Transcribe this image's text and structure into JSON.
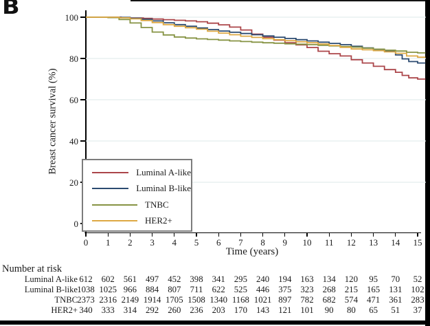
{
  "panel_label": "B",
  "colors": {
    "luminal_a_like": "#ab4549",
    "luminal_b_like": "#2b4a70",
    "tnbc": "#869343",
    "her2_plus": "#dda843",
    "gridline": "#e4edee",
    "legend_border": "#7c7c7c",
    "axis": "#000000",
    "frame": "#000000"
  },
  "chart_data": {
    "type": "line",
    "subtype": "kaplan-meier-step",
    "title": "",
    "xlabel": "Time (years)",
    "ylabel": "Breast cancer survival (%)",
    "xlim": [
      0,
      15
    ],
    "ylim": [
      0,
      100
    ],
    "xticks": [
      0,
      1,
      2,
      3,
      4,
      5,
      6,
      7,
      8,
      9,
      10,
      11,
      12,
      13,
      14,
      15
    ],
    "yticks": [
      0,
      20,
      40,
      60,
      80,
      100
    ],
    "grid": "horizontal",
    "legend_position": "lower-left-box",
    "series": [
      {
        "name": "Luminal A-like",
        "color": "#ab4549",
        "points": [
          [
            0,
            100
          ],
          [
            1,
            100
          ],
          [
            1.6,
            99.8
          ],
          [
            2,
            99.6
          ],
          [
            2.6,
            99.4
          ],
          [
            3,
            99.1
          ],
          [
            3.5,
            98.8
          ],
          [
            4,
            98.5
          ],
          [
            4.5,
            98.2
          ],
          [
            5,
            97.8
          ],
          [
            5.5,
            97.1
          ],
          [
            6,
            96.3
          ],
          [
            6.5,
            95.2
          ],
          [
            7,
            93.8
          ],
          [
            7.5,
            91.8
          ],
          [
            8,
            90.3
          ],
          [
            8.5,
            88.9
          ],
          [
            9,
            87.6
          ],
          [
            9.5,
            86.6
          ],
          [
            10,
            85.3
          ],
          [
            10.5,
            83.5
          ],
          [
            11,
            82.3
          ],
          [
            11.5,
            81.2
          ],
          [
            12,
            79.4
          ],
          [
            12.5,
            77.8
          ],
          [
            13,
            76.2
          ],
          [
            13.5,
            74.6
          ],
          [
            14,
            73.3
          ],
          [
            14.3,
            71.8
          ],
          [
            14.6,
            70.6
          ],
          [
            15,
            70
          ],
          [
            15.35,
            70
          ]
        ]
      },
      {
        "name": "Luminal B-like",
        "color": "#2b4a70",
        "points": [
          [
            0,
            100
          ],
          [
            1,
            100
          ],
          [
            1.5,
            99.9
          ],
          [
            2,
            99.5
          ],
          [
            2.5,
            99.0
          ],
          [
            3,
            98.2
          ],
          [
            3.5,
            97.3
          ],
          [
            4,
            96.4
          ],
          [
            4.5,
            95.6
          ],
          [
            5,
            94.8
          ],
          [
            5.5,
            94.0
          ],
          [
            6,
            93.3
          ],
          [
            6.5,
            92.7
          ],
          [
            7,
            92.1
          ],
          [
            7.5,
            91.5
          ],
          [
            8,
            90.9
          ],
          [
            8.5,
            90.3
          ],
          [
            9,
            89.7
          ],
          [
            9.5,
            89.1
          ],
          [
            10,
            88.5
          ],
          [
            10.5,
            87.9
          ],
          [
            11,
            87.3
          ],
          [
            11.5,
            86.7
          ],
          [
            12,
            85.9
          ],
          [
            12.5,
            85.1
          ],
          [
            13,
            84.4
          ],
          [
            13.5,
            83.6
          ],
          [
            14,
            81.7
          ],
          [
            14.3,
            79.8
          ],
          [
            14.6,
            78.5
          ],
          [
            15,
            77.8
          ],
          [
            15.35,
            77.8
          ]
        ]
      },
      {
        "name": "TNBC",
        "color": "#869343",
        "points": [
          [
            0,
            100
          ],
          [
            1,
            99.8
          ],
          [
            1.5,
            98.9
          ],
          [
            2,
            97.2
          ],
          [
            2.5,
            95.0
          ],
          [
            3,
            92.8
          ],
          [
            3.5,
            91.4
          ],
          [
            4,
            90.4
          ],
          [
            4.5,
            89.9
          ],
          [
            5,
            89.5
          ],
          [
            5.5,
            89.2
          ],
          [
            6,
            88.9
          ],
          [
            6.5,
            88.5
          ],
          [
            7,
            88.2
          ],
          [
            7.5,
            87.9
          ],
          [
            8,
            87.6
          ],
          [
            8.5,
            87.4
          ],
          [
            9,
            87.1
          ],
          [
            9.5,
            86.9
          ],
          [
            10,
            86.7
          ],
          [
            10.5,
            86.4
          ],
          [
            11,
            86.1
          ],
          [
            11.5,
            85.8
          ],
          [
            12,
            85.5
          ],
          [
            12.5,
            85.0
          ],
          [
            13,
            84.5
          ],
          [
            13.5,
            84.0
          ],
          [
            14,
            83.6
          ],
          [
            14.5,
            83.0
          ],
          [
            15,
            82.7
          ],
          [
            15.35,
            82.7
          ]
        ]
      },
      {
        "name": "HER2+",
        "color": "#dda843",
        "points": [
          [
            0,
            100
          ],
          [
            1,
            100
          ],
          [
            1.5,
            99.7
          ],
          [
            2,
            99.2
          ],
          [
            2.5,
            98.4
          ],
          [
            3,
            97.4
          ],
          [
            3.5,
            96.4
          ],
          [
            4,
            95.6
          ],
          [
            4.5,
            94.9
          ],
          [
            5,
            94.2
          ],
          [
            5.5,
            93.2
          ],
          [
            6,
            92.3
          ],
          [
            6.5,
            91.5
          ],
          [
            7,
            90.8
          ],
          [
            7.5,
            90.2
          ],
          [
            8,
            89.6
          ],
          [
            8.5,
            89.1
          ],
          [
            9,
            88.6
          ],
          [
            9.5,
            88.1
          ],
          [
            10,
            87.6
          ],
          [
            10.5,
            87.0
          ],
          [
            11,
            86.3
          ],
          [
            11.5,
            85.4
          ],
          [
            12,
            84.6
          ],
          [
            12.5,
            84.2
          ],
          [
            13,
            83.8
          ],
          [
            13.5,
            83.2
          ],
          [
            14,
            82.5
          ],
          [
            14.5,
            81.2
          ],
          [
            15,
            80.6
          ],
          [
            15.35,
            80.6
          ]
        ]
      }
    ]
  },
  "risk_table": {
    "title": "Number at risk",
    "timepoints": [
      0,
      1,
      2,
      3,
      4,
      5,
      6,
      7,
      8,
      9,
      10,
      11,
      12,
      13,
      14,
      15
    ],
    "rows": [
      {
        "label": "Luminal A-like",
        "values": [
          612,
          602,
          561,
          497,
          452,
          398,
          341,
          295,
          240,
          194,
          163,
          134,
          120,
          95,
          70,
          52
        ]
      },
      {
        "label": "Luminal B-like",
        "values": [
          1038,
          1025,
          966,
          884,
          807,
          711,
          622,
          525,
          446,
          375,
          323,
          268,
          215,
          165,
          131,
          102
        ]
      },
      {
        "label": "TNBC",
        "values": [
          2373,
          2316,
          2149,
          1914,
          1705,
          1508,
          1340,
          1168,
          1021,
          897,
          782,
          682,
          574,
          471,
          361,
          283
        ]
      },
      {
        "label": "HER2+",
        "values": [
          340,
          333,
          314,
          292,
          260,
          236,
          203,
          170,
          143,
          121,
          101,
          90,
          80,
          65,
          51,
          37
        ]
      }
    ]
  }
}
